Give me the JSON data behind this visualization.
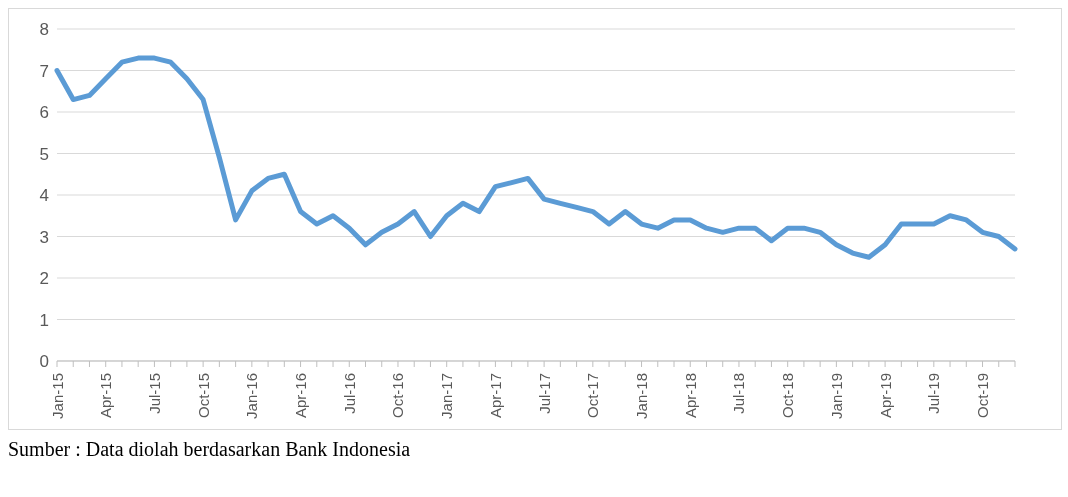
{
  "chart_data": {
    "type": "line",
    "categories": [
      "Jan-15",
      null,
      null,
      "Apr-15",
      null,
      null,
      "Jul-15",
      null,
      null,
      "Oct-15",
      null,
      null,
      "Jan-16",
      null,
      null,
      "Apr-16",
      null,
      null,
      "Jul-16",
      null,
      null,
      "Oct-16",
      null,
      null,
      "Jan-17",
      null,
      null,
      "Apr-17",
      null,
      null,
      "Jul-17",
      null,
      null,
      "Oct-17",
      null,
      null,
      "Jan-18",
      null,
      null,
      "Apr-18",
      null,
      null,
      "Jul-18",
      null,
      null,
      "Oct-18",
      null,
      null,
      "Jan-19",
      null,
      null,
      "Apr-19",
      null,
      null,
      "Jul-19",
      null,
      null,
      "Oct-19",
      null,
      null
    ],
    "series": [
      {
        "color": "#5b9bd5",
        "values": [
          7.0,
          6.3,
          6.4,
          6.8,
          7.2,
          7.3,
          7.3,
          7.2,
          6.8,
          6.3,
          4.9,
          3.4,
          4.1,
          4.4,
          4.5,
          3.6,
          3.3,
          3.5,
          3.2,
          2.8,
          3.1,
          3.3,
          3.6,
          3.0,
          3.5,
          3.8,
          3.6,
          4.2,
          4.3,
          4.4,
          3.9,
          3.8,
          3.7,
          3.6,
          3.3,
          3.6,
          3.3,
          3.2,
          3.4,
          3.4,
          3.2,
          3.1,
          3.2,
          3.2,
          2.9,
          3.2,
          3.2,
          3.1,
          2.8,
          2.6,
          2.5,
          2.8,
          3.3,
          3.3,
          3.3,
          3.5,
          3.4,
          3.1,
          3.0,
          2.7
        ]
      }
    ],
    "ylim": [
      0,
      8
    ],
    "yticks": [
      0,
      1,
      2,
      3,
      4,
      5,
      6,
      7,
      8
    ],
    "grid": "y",
    "legend": false,
    "marker": "none",
    "line_style": "solid",
    "annotations": [
      "Sumber : Data diolah berdasarkan Bank Indonesia"
    ]
  }
}
